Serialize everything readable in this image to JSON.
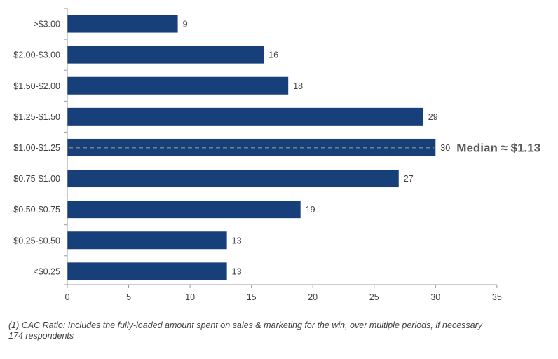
{
  "chart_data": {
    "type": "bar",
    "orientation": "horizontal",
    "categories": [
      ">$3.00",
      "$2.00-$3.00",
      "$1.50-$2.00",
      "$1.25-$1.50",
      "$1.00-$1.25",
      "$0.75-$1.00",
      "$0.50-$0.75",
      "$0.25-$0.50",
      "<$0.25"
    ],
    "values": [
      9,
      16,
      18,
      29,
      30,
      27,
      19,
      13,
      13
    ],
    "xlim": [
      0,
      35
    ],
    "xticks": [
      0,
      5,
      10,
      15,
      20,
      25,
      30,
      35
    ],
    "grid": false,
    "bar_color": "#17407a",
    "median": {
      "label": "Median ≈ $1.13",
      "category": "$1.00-$1.25",
      "line_color": "#7f7f7f"
    }
  },
  "footnote": {
    "line1": "(1) CAC Ratio: Includes the fully-loaded amount spent on sales & marketing for the win, over multiple periods, if necessary",
    "line2": "174 respondents"
  }
}
